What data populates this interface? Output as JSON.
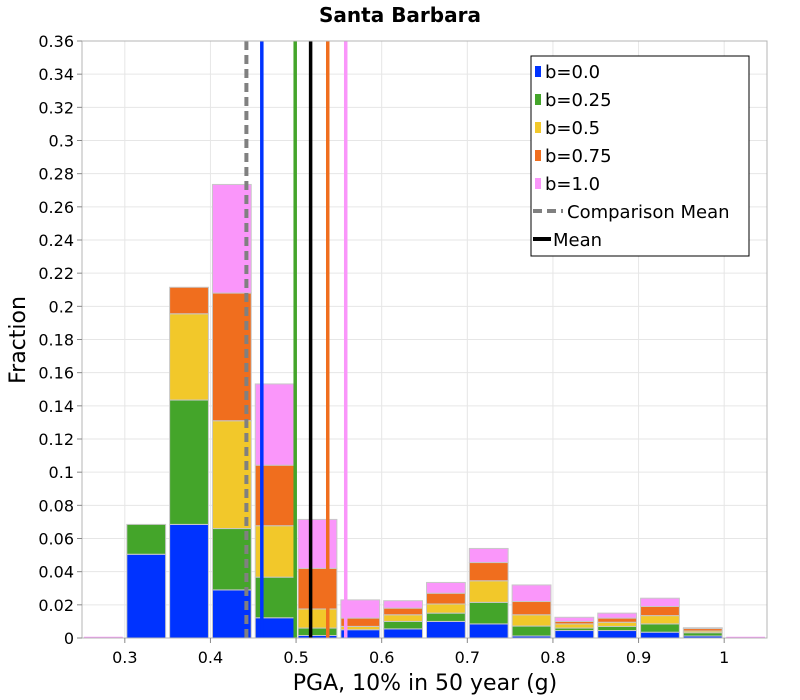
{
  "colors": {
    "b0": "#0033ff",
    "b025": "#44a52a",
    "b05": "#f2c82a",
    "b075": "#f06e1e",
    "b1": "#fa96fa",
    "comparison_mean": "#808080",
    "mean": "#000000",
    "grid": "#e6e6e6",
    "bar_stroke": "#c8c8c8"
  },
  "chart_data": {
    "type": "bar",
    "stacked": true,
    "title": "Santa Barbara",
    "xlabel": "PGA, 10% in 50 year (g)",
    "ylabel": "Fraction",
    "xlim": [
      0.25,
      1.05
    ],
    "ylim": [
      0,
      0.36
    ],
    "xticks": [
      "0.3",
      "0.4",
      "0.5",
      "0.6",
      "0.7",
      "0.8",
      "0.9",
      "1"
    ],
    "xtick_values": [
      0.3,
      0.4,
      0.5,
      0.6,
      0.7,
      0.8,
      0.9,
      1.0
    ],
    "yticks": [
      "0",
      "0.02",
      "0.04",
      "0.06",
      "0.08",
      "0.1",
      "0.12",
      "0.14",
      "0.16",
      "0.18",
      "0.2",
      "0.22",
      "0.24",
      "0.26",
      "0.28",
      "0.3",
      "0.32",
      "0.34",
      "0.36"
    ],
    "ytick_values": [
      0,
      0.02,
      0.04,
      0.06,
      0.08,
      0.1,
      0.12,
      0.14,
      0.16,
      0.18,
      0.2,
      0.22,
      0.24,
      0.26,
      0.28,
      0.3,
      0.32,
      0.34,
      0.36
    ],
    "grid": true,
    "legend_position": "top-right",
    "bin_width": 0.05,
    "bin_centers": [
      0.275,
      0.325,
      0.375,
      0.425,
      0.475,
      0.525,
      0.575,
      0.625,
      0.675,
      0.725,
      0.775,
      0.825,
      0.875,
      0.925,
      0.975,
      1.025
    ],
    "series": [
      {
        "name": "b=0.0",
        "color_key": "b0",
        "values": [
          0.0,
          0.0505,
          0.0685,
          0.029,
          0.0122,
          0.0015,
          0.005,
          0.0055,
          0.01,
          0.0085,
          0.0012,
          0.0045,
          0.0045,
          0.0035,
          0.0012,
          0.0
        ]
      },
      {
        "name": "b=0.25",
        "color_key": "b025",
        "values": [
          0.0,
          0.018,
          0.075,
          0.037,
          0.0245,
          0.0045,
          0.0,
          0.0045,
          0.005,
          0.013,
          0.006,
          0.0015,
          0.0025,
          0.005,
          0.002,
          0.0
        ]
      },
      {
        "name": "b=0.5",
        "color_key": "b05",
        "values": [
          0.0,
          0.0,
          0.052,
          0.065,
          0.031,
          0.0115,
          0.002,
          0.004,
          0.0055,
          0.013,
          0.0068,
          0.0025,
          0.0025,
          0.005,
          0.001,
          0.0
        ]
      },
      {
        "name": "b=0.75",
        "color_key": "b075",
        "values": [
          0.0,
          0.0,
          0.016,
          0.077,
          0.0365,
          0.0245,
          0.005,
          0.004,
          0.0065,
          0.011,
          0.008,
          0.0015,
          0.0025,
          0.0055,
          0.0015,
          0.0
        ]
      },
      {
        "name": "b=1.0",
        "color_key": "b1",
        "values": [
          0.0,
          0.0,
          0.0,
          0.0655,
          0.049,
          0.0295,
          0.011,
          0.0045,
          0.0065,
          0.0085,
          0.01,
          0.0025,
          0.003,
          0.005,
          0.0005,
          0.0
        ]
      }
    ],
    "mean_lines": [
      {
        "x": 0.46,
        "color_key": "b0",
        "style": "solid"
      },
      {
        "x": 0.499,
        "color_key": "b025",
        "style": "solid"
      },
      {
        "x": 0.517,
        "color_key": "mean",
        "style": "solid"
      },
      {
        "x": 0.537,
        "color_key": "b075",
        "style": "solid"
      },
      {
        "x": 0.558,
        "color_key": "b1",
        "style": "solid"
      },
      {
        "x": 0.442,
        "color_key": "comparison_mean",
        "style": "dashed"
      }
    ],
    "legend": [
      {
        "label": "b=0.0",
        "color_key": "b0",
        "kind": "box"
      },
      {
        "label": "b=0.25",
        "color_key": "b025",
        "kind": "box"
      },
      {
        "label": "b=0.5",
        "color_key": "b05",
        "kind": "box"
      },
      {
        "label": "b=0.75",
        "color_key": "b075",
        "kind": "box"
      },
      {
        "label": "b=1.0",
        "color_key": "b1",
        "kind": "box"
      },
      {
        "label": "Comparison Mean",
        "color_key": "comparison_mean",
        "kind": "dashed"
      },
      {
        "label": "Mean",
        "color_key": "mean",
        "kind": "line"
      }
    ]
  }
}
